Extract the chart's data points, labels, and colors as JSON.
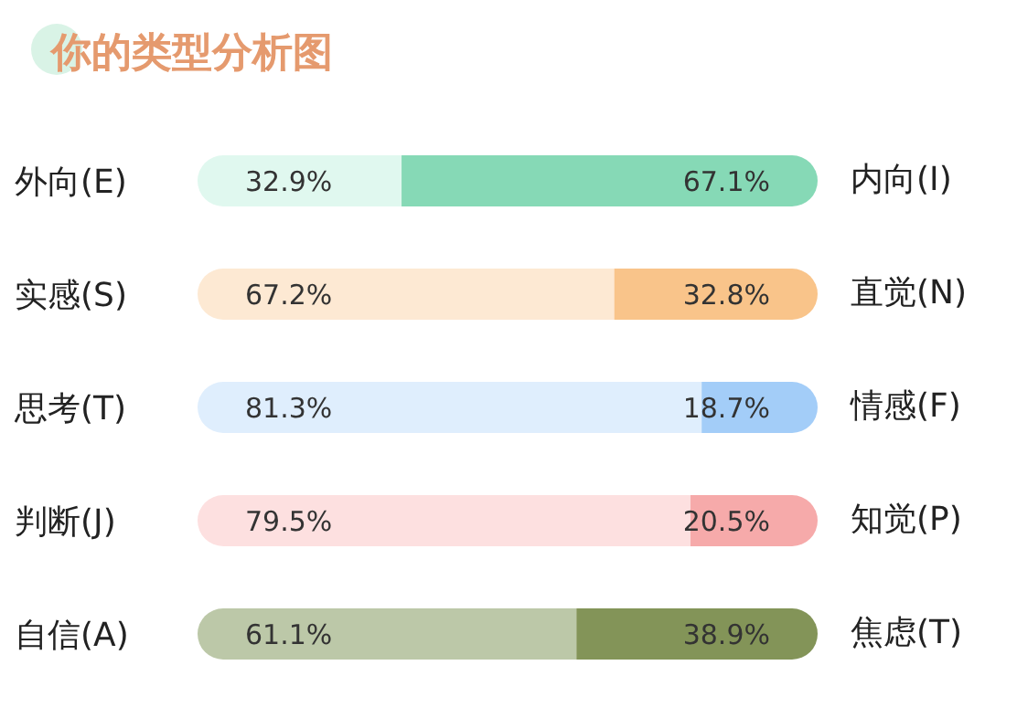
{
  "chart_data": {
    "type": "bar",
    "orientation": "horizontal",
    "stacked": true,
    "title": "你的类型分析图",
    "categories": [
      "外向(E)",
      "实感(S)",
      "思考(T)",
      "判断(J)",
      "自信(A)"
    ],
    "series": [
      {
        "colors": [
          "#e0f8ef",
          "#fde9d3",
          "#dfeefd",
          "#fde0e0",
          "#bcc8a8"
        ],
        "values": [
          32.9,
          67.2,
          81.3,
          79.5,
          61.1
        ],
        "value_labels": [
          "32.9%",
          "67.2%",
          "81.3%",
          "79.5%",
          "61.1%"
        ]
      },
      {
        "colors": [
          "#86d9b6",
          "#f9c48a",
          "#a3cdf8",
          "#f6aaaa",
          "#839458"
        ],
        "values": [
          67.1,
          32.8,
          18.7,
          20.5,
          38.9
        ],
        "value_labels": [
          "67.1%",
          "32.8%",
          "18.7%",
          "20.5%",
          "38.9%"
        ]
      }
    ],
    "annotations": [
      "内向(I)",
      "直觉(N)",
      "情感(F)",
      "知觉(P)",
      "焦虑(T)"
    ],
    "xlim": [
      0,
      100
    ],
    "tick_labels": "y"
  }
}
